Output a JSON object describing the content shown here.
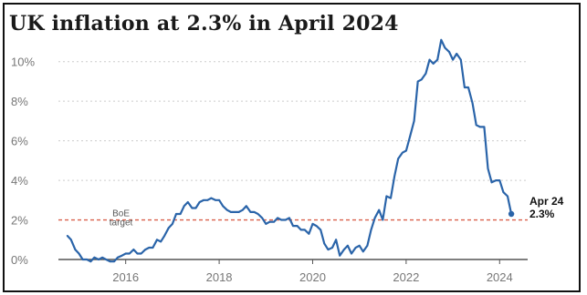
{
  "chart_data": {
    "type": "line",
    "title": "UK inflation at 2.3% in April 2024",
    "xlabel": "",
    "ylabel": "",
    "x_range": [
      2014.6,
      2024.6
    ],
    "ylim": [
      0,
      11
    ],
    "x_ticks": [
      2016,
      2018,
      2020,
      2022,
      2024
    ],
    "y_ticks": [
      0,
      2,
      4,
      6,
      8,
      10
    ],
    "y_tick_labels": [
      "0%",
      "2%",
      "4%",
      "6%",
      "8%",
      "10%"
    ],
    "grid": "horizontal dashed",
    "colors": {
      "line": "#2a64a9",
      "target": "#d9604a",
      "axis": "#555555",
      "grid": "#cccccc"
    },
    "target_line": {
      "value": 2,
      "label_line1": "BoE",
      "label_line2": "target"
    },
    "end_label": {
      "line1": "Apr 24",
      "line2": "2.3%"
    },
    "series": [
      {
        "points": [
          [
            2014.75,
            1.2
          ],
          [
            2014.83,
            1.0
          ],
          [
            2014.92,
            0.5
          ],
          [
            2015.0,
            0.3
          ],
          [
            2015.08,
            0.0
          ],
          [
            2015.17,
            0.0
          ],
          [
            2015.25,
            -0.1
          ],
          [
            2015.33,
            0.1
          ],
          [
            2015.42,
            0.0
          ],
          [
            2015.5,
            0.1
          ],
          [
            2015.58,
            0.0
          ],
          [
            2015.67,
            -0.1
          ],
          [
            2015.75,
            -0.1
          ],
          [
            2015.83,
            0.1
          ],
          [
            2015.92,
            0.2
          ],
          [
            2016.0,
            0.3
          ],
          [
            2016.08,
            0.3
          ],
          [
            2016.17,
            0.5
          ],
          [
            2016.25,
            0.3
          ],
          [
            2016.33,
            0.3
          ],
          [
            2016.42,
            0.5
          ],
          [
            2016.5,
            0.6
          ],
          [
            2016.58,
            0.6
          ],
          [
            2016.67,
            1.0
          ],
          [
            2016.75,
            0.9
          ],
          [
            2016.83,
            1.2
          ],
          [
            2016.92,
            1.6
          ],
          [
            2017.0,
            1.8
          ],
          [
            2017.08,
            2.3
          ],
          [
            2017.17,
            2.3
          ],
          [
            2017.25,
            2.7
          ],
          [
            2017.33,
            2.9
          ],
          [
            2017.42,
            2.6
          ],
          [
            2017.5,
            2.6
          ],
          [
            2017.58,
            2.9
          ],
          [
            2017.67,
            3.0
          ],
          [
            2017.75,
            3.0
          ],
          [
            2017.83,
            3.1
          ],
          [
            2017.92,
            3.0
          ],
          [
            2018.0,
            3.0
          ],
          [
            2018.08,
            2.7
          ],
          [
            2018.17,
            2.5
          ],
          [
            2018.25,
            2.4
          ],
          [
            2018.33,
            2.4
          ],
          [
            2018.42,
            2.4
          ],
          [
            2018.5,
            2.5
          ],
          [
            2018.58,
            2.7
          ],
          [
            2018.67,
            2.4
          ],
          [
            2018.75,
            2.4
          ],
          [
            2018.83,
            2.3
          ],
          [
            2018.92,
            2.1
          ],
          [
            2019.0,
            1.8
          ],
          [
            2019.08,
            1.9
          ],
          [
            2019.17,
            1.9
          ],
          [
            2019.25,
            2.1
          ],
          [
            2019.33,
            2.0
          ],
          [
            2019.42,
            2.0
          ],
          [
            2019.5,
            2.1
          ],
          [
            2019.58,
            1.7
          ],
          [
            2019.67,
            1.7
          ],
          [
            2019.75,
            1.5
          ],
          [
            2019.83,
            1.5
          ],
          [
            2019.92,
            1.3
          ],
          [
            2020.0,
            1.8
          ],
          [
            2020.08,
            1.7
          ],
          [
            2020.17,
            1.5
          ],
          [
            2020.25,
            0.8
          ],
          [
            2020.33,
            0.5
          ],
          [
            2020.42,
            0.6
          ],
          [
            2020.5,
            1.0
          ],
          [
            2020.58,
            0.2
          ],
          [
            2020.67,
            0.5
          ],
          [
            2020.75,
            0.7
          ],
          [
            2020.83,
            0.3
          ],
          [
            2020.92,
            0.6
          ],
          [
            2021.0,
            0.7
          ],
          [
            2021.08,
            0.4
          ],
          [
            2021.17,
            0.7
          ],
          [
            2021.25,
            1.5
          ],
          [
            2021.33,
            2.1
          ],
          [
            2021.42,
            2.5
          ],
          [
            2021.5,
            2.0
          ],
          [
            2021.58,
            3.2
          ],
          [
            2021.67,
            3.1
          ],
          [
            2021.75,
            4.2
          ],
          [
            2021.83,
            5.1
          ],
          [
            2021.92,
            5.4
          ],
          [
            2022.0,
            5.5
          ],
          [
            2022.08,
            6.2
          ],
          [
            2022.17,
            7.0
          ],
          [
            2022.25,
            9.0
          ],
          [
            2022.33,
            9.1
          ],
          [
            2022.42,
            9.4
          ],
          [
            2022.5,
            10.1
          ],
          [
            2022.58,
            9.9
          ],
          [
            2022.67,
            10.1
          ],
          [
            2022.75,
            11.1
          ],
          [
            2022.83,
            10.7
          ],
          [
            2022.92,
            10.5
          ],
          [
            2023.0,
            10.1
          ],
          [
            2023.08,
            10.4
          ],
          [
            2023.17,
            10.1
          ],
          [
            2023.25,
            8.7
          ],
          [
            2023.33,
            8.7
          ],
          [
            2023.42,
            7.9
          ],
          [
            2023.5,
            6.8
          ],
          [
            2023.58,
            6.7
          ],
          [
            2023.67,
            6.7
          ],
          [
            2023.75,
            4.6
          ],
          [
            2023.83,
            3.9
          ],
          [
            2023.92,
            4.0
          ],
          [
            2024.0,
            4.0
          ],
          [
            2024.08,
            3.4
          ],
          [
            2024.17,
            3.2
          ],
          [
            2024.25,
            2.3
          ]
        ]
      }
    ]
  }
}
